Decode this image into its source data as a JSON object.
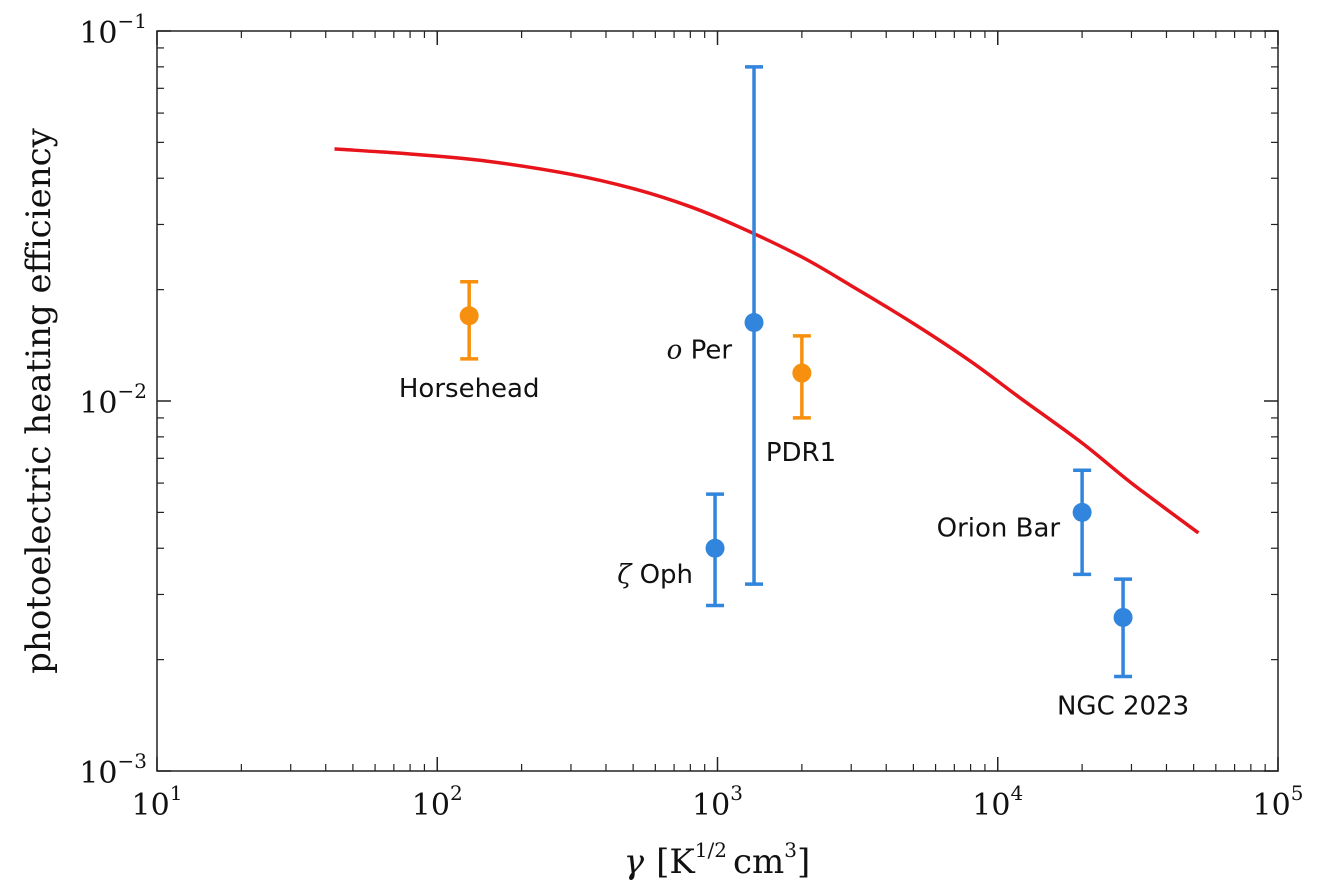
{
  "chart_data": {
    "type": "scatter",
    "title": "",
    "xlabel": {
      "symbol": "γ",
      "unit_open": "[K",
      "unit_exp": "1/2",
      "unit_mid": "cm",
      "unit_exp2": "3",
      "unit_close": "]"
    },
    "ylabel": "photoelectric heating efficiency",
    "xscale": "log",
    "yscale": "log",
    "xlim": [
      10,
      100000
    ],
    "ylim": [
      0.001,
      0.1
    ],
    "x_ticks": [
      {
        "value": 10,
        "base": "10",
        "exp": "1"
      },
      {
        "value": 100,
        "base": "10",
        "exp": "2"
      },
      {
        "value": 1000,
        "base": "10",
        "exp": "3"
      },
      {
        "value": 10000,
        "base": "10",
        "exp": "4"
      },
      {
        "value": 100000,
        "base": "10",
        "exp": "5"
      }
    ],
    "y_ticks": [
      {
        "value": 0.001,
        "base": "10",
        "exp": "−3"
      },
      {
        "value": 0.01,
        "base": "10",
        "exp": "−2"
      },
      {
        "value": 0.1,
        "base": "10",
        "exp": "−1"
      }
    ],
    "grid": false,
    "curve": {
      "color": "#e8141c",
      "x": [
        43,
        80,
        150,
        300,
        500,
        800,
        1200,
        2000,
        3000,
        5000,
        8000,
        12000,
        20000,
        30000,
        52000
      ],
      "y": [
        0.048,
        0.0465,
        0.0445,
        0.041,
        0.0375,
        0.0335,
        0.0295,
        0.0245,
        0.0205,
        0.0162,
        0.0128,
        0.0102,
        0.0077,
        0.006,
        0.0044
      ]
    },
    "points": [
      {
        "label_prefix": "",
        "label": "Horsehead",
        "x": 130,
        "y": 0.017,
        "y_low": 0.013,
        "y_high": 0.021,
        "color": "#f7900e",
        "label_pos": "below"
      },
      {
        "label_prefix": "o",
        "label": "Per",
        "x": 1350,
        "y": 0.0163,
        "y_low": 0.0032,
        "y_high": 0.08,
        "color": "#3185dc",
        "label_pos": "left"
      },
      {
        "label_prefix": "",
        "label": "PDR1",
        "x": 2000,
        "y": 0.0119,
        "y_low": 0.009,
        "y_high": 0.015,
        "color": "#f7900e",
        "label_pos": "below-right"
      },
      {
        "label_prefix": "ζ",
        "label": "Oph",
        "x": 980,
        "y": 0.004,
        "y_low": 0.0028,
        "y_high": 0.0056,
        "color": "#3185dc",
        "label_pos": "left"
      },
      {
        "label_prefix": "",
        "label": "Orion Bar",
        "x": 20000,
        "y": 0.005,
        "y_low": 0.0034,
        "y_high": 0.0065,
        "color": "#3185dc",
        "label_pos": "left"
      },
      {
        "label_prefix": "",
        "label": "NGC 2023",
        "x": 28000,
        "y": 0.0026,
        "y_low": 0.0018,
        "y_high": 0.0033,
        "color": "#3185dc",
        "label_pos": "below"
      }
    ]
  }
}
